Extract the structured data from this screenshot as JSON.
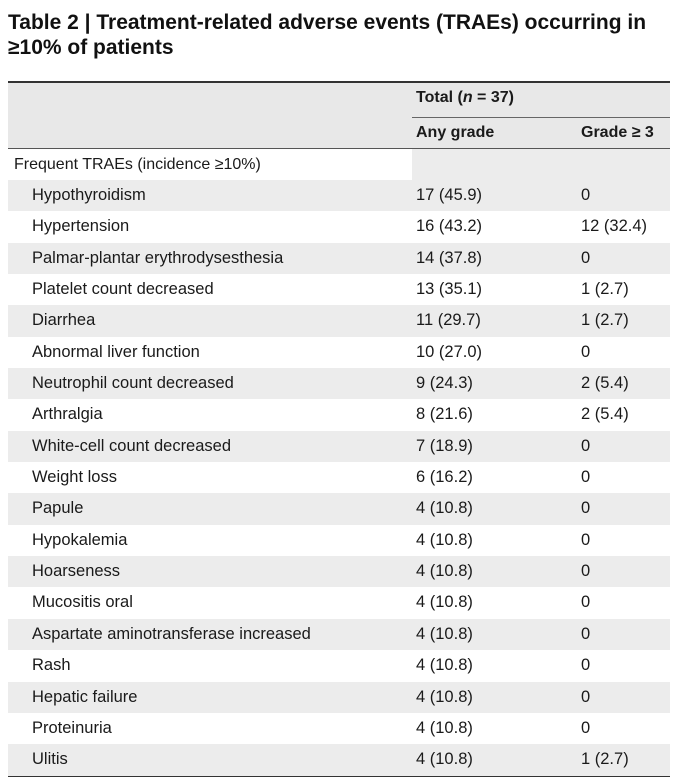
{
  "title": "Table 2 | Treatment-related adverse events (TRAEs) occurring in ≥10% of patients",
  "header": {
    "total_prefix": "Total (",
    "total_n": "n",
    "total_suffix": " = 37)",
    "any_grade": "Any grade",
    "grade3": "Grade ≥ 3"
  },
  "section_label": "Frequent TRAEs (incidence ≥10%)",
  "rows": [
    {
      "event": "Hypothyroidism",
      "any": "17 (45.9)",
      "g3": "0"
    },
    {
      "event": "Hypertension",
      "any": "16 (43.2)",
      "g3": "12 (32.4)"
    },
    {
      "event": "Palmar-plantar erythrodysesthesia",
      "any": "14 (37.8)",
      "g3": "0"
    },
    {
      "event": "Platelet count decreased",
      "any": "13 (35.1)",
      "g3": "1 (2.7)"
    },
    {
      "event": "Diarrhea",
      "any": "11 (29.7)",
      "g3": "1 (2.7)"
    },
    {
      "event": "Abnormal liver function",
      "any": "10 (27.0)",
      "g3": "0"
    },
    {
      "event": "Neutrophil count decreased",
      "any": "9 (24.3)",
      "g3": "2 (5.4)"
    },
    {
      "event": "Arthralgia",
      "any": "8 (21.6)",
      "g3": "2 (5.4)"
    },
    {
      "event": "White-cell count decreased",
      "any": "7 (18.9)",
      "g3": "0"
    },
    {
      "event": "Weight loss",
      "any": "6 (16.2)",
      "g3": "0"
    },
    {
      "event": "Papule",
      "any": "4 (10.8)",
      "g3": "0"
    },
    {
      "event": "Hypokalemia",
      "any": "4 (10.8)",
      "g3": "0"
    },
    {
      "event": "Hoarseness",
      "any": "4 (10.8)",
      "g3": "0"
    },
    {
      "event": "Mucositis oral",
      "any": "4 (10.8)",
      "g3": "0"
    },
    {
      "event": "Aspartate aminotransferase increased",
      "any": "4 (10.8)",
      "g3": "0"
    },
    {
      "event": "Rash",
      "any": "4 (10.8)",
      "g3": "0"
    },
    {
      "event": "Hepatic failure",
      "any": "4 (10.8)",
      "g3": "0"
    },
    {
      "event": "Proteinuria",
      "any": "4 (10.8)",
      "g3": "0"
    },
    {
      "event": "Ulitis",
      "any": "4 (10.8)",
      "g3": "1 (2.7)"
    }
  ]
}
